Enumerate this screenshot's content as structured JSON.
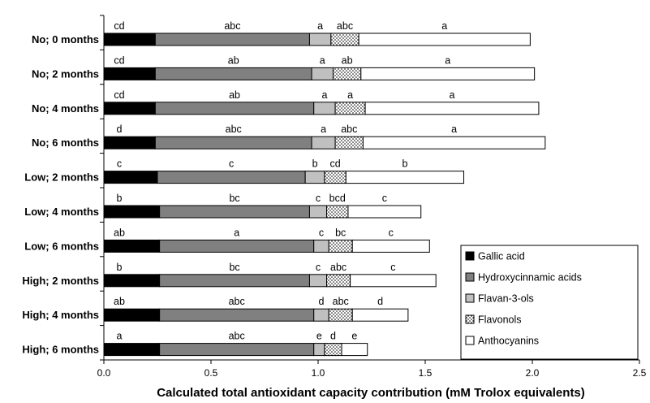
{
  "chart_data": {
    "type": "stacked-bar-horizontal",
    "xlabel": "Calculated total antioxidant capacity contribution (mM Trolox equivalents)",
    "xlim": [
      0,
      2.5
    ],
    "xticks": [
      "0.0",
      "0.5",
      "1.0",
      "1.5",
      "2.0",
      "2.5"
    ],
    "legend_position": "bottom-right",
    "categories": [
      "No; 0 months",
      "No; 2 months",
      "No; 4 months",
      "No; 6 months",
      "Low; 2 months",
      "Low; 4 months",
      "Low; 6 months",
      "High; 2 months",
      "High; 4 months",
      "High; 6 months"
    ],
    "series": [
      {
        "name": "Gallic acid",
        "color": "#000000",
        "pattern": "solid",
        "values": [
          0.24,
          0.24,
          0.24,
          0.24,
          0.25,
          0.26,
          0.26,
          0.26,
          0.26,
          0.26
        ],
        "letters": [
          "cd",
          "cd",
          "cd",
          "d",
          "c",
          "b",
          "ab",
          "b",
          "ab",
          "a"
        ]
      },
      {
        "name": "Hydroxycinnamic acids",
        "color": "#808080",
        "pattern": "solid",
        "values": [
          0.72,
          0.73,
          0.74,
          0.73,
          0.69,
          0.7,
          0.72,
          0.7,
          0.72,
          0.72
        ],
        "letters": [
          "abc",
          "ab",
          "ab",
          "abc",
          "c",
          "bc",
          "a",
          "bc",
          "abc",
          "abc"
        ]
      },
      {
        "name": "Flavan-3-ols",
        "color": "#c0c0c0",
        "pattern": "solid",
        "values": [
          0.1,
          0.1,
          0.1,
          0.11,
          0.09,
          0.08,
          0.07,
          0.08,
          0.07,
          0.05
        ],
        "letters": [
          "a",
          "a",
          "a",
          "a",
          "b",
          "c",
          "c",
          "c",
          "d",
          "e"
        ]
      },
      {
        "name": "Flavonols",
        "color": "#ffffff",
        "pattern": "dots",
        "values": [
          0.13,
          0.13,
          0.14,
          0.13,
          0.1,
          0.1,
          0.11,
          0.11,
          0.11,
          0.08
        ],
        "letters": [
          "abc",
          "ab",
          "a",
          "abc",
          "cd",
          "bcd",
          "bc",
          "abc",
          "abc",
          "d"
        ]
      },
      {
        "name": "Anthocyanins",
        "color": "#ffffff",
        "pattern": "solid",
        "values": [
          0.8,
          0.81,
          0.81,
          0.85,
          0.55,
          0.34,
          0.36,
          0.4,
          0.26,
          0.12
        ],
        "letters": [
          "a",
          "a",
          "a",
          "a",
          "b",
          "c",
          "c",
          "c",
          "d",
          "e"
        ]
      }
    ]
  }
}
